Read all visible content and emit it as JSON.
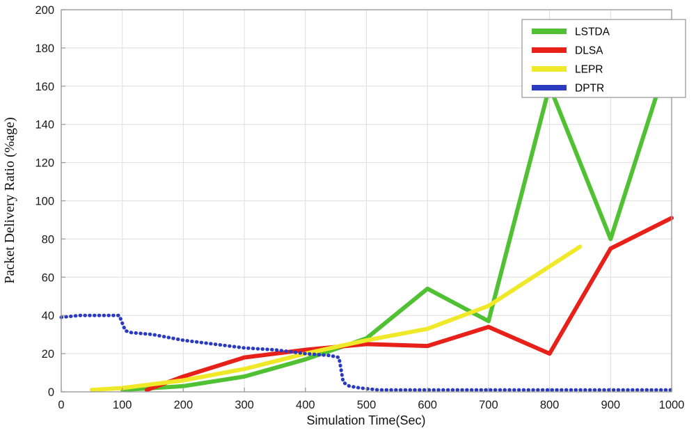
{
  "chart_data": {
    "type": "line",
    "title": "",
    "xlabel": "Simulation Time(Sec)",
    "ylabel": "Packet Delivery Ratio (%age)",
    "xlim": [
      0,
      1000
    ],
    "ylim": [
      0,
      200
    ],
    "xticks": [
      0,
      100,
      200,
      300,
      400,
      500,
      600,
      700,
      800,
      900,
      1000
    ],
    "yticks": [
      0,
      20,
      40,
      60,
      80,
      100,
      120,
      140,
      160,
      180,
      200
    ],
    "grid": true,
    "legend_position": "top-right",
    "colors": {
      "background": "#ffffff",
      "grid": "#dedede",
      "box": "#9b9b9b",
      "tick_text": "#1a1a1a"
    },
    "series": [
      {
        "name": "LSTDA",
        "color": "#4fc132",
        "style": "solid",
        "width": 6,
        "points": [
          [
            100,
            1
          ],
          [
            200,
            3
          ],
          [
            300,
            8
          ],
          [
            400,
            17
          ],
          [
            500,
            28
          ],
          [
            600,
            54
          ],
          [
            700,
            37
          ],
          [
            800,
            160
          ],
          [
            900,
            80
          ],
          [
            1000,
            180
          ]
        ]
      },
      {
        "name": "DLSA",
        "color": "#e7211a",
        "style": "solid",
        "width": 6,
        "points": [
          [
            140,
            1
          ],
          [
            200,
            8
          ],
          [
            300,
            18
          ],
          [
            400,
            22
          ],
          [
            500,
            25
          ],
          [
            600,
            24
          ],
          [
            700,
            34
          ],
          [
            800,
            20
          ],
          [
            900,
            75
          ],
          [
            1000,
            91
          ]
        ]
      },
      {
        "name": "LEPR",
        "color": "#f0e92a",
        "style": "solid",
        "width": 6,
        "points": [
          [
            50,
            1
          ],
          [
            100,
            2
          ],
          [
            200,
            6
          ],
          [
            300,
            12
          ],
          [
            400,
            20
          ],
          [
            500,
            27
          ],
          [
            600,
            33
          ],
          [
            700,
            45
          ],
          [
            850,
            76
          ]
        ]
      },
      {
        "name": "DPTR",
        "color": "#2b3bc0",
        "style": "dotted",
        "width": 5,
        "points": [
          [
            0,
            39
          ],
          [
            30,
            40
          ],
          [
            95,
            40
          ],
          [
            105,
            32
          ],
          [
            115,
            31
          ],
          [
            150,
            30
          ],
          [
            200,
            27
          ],
          [
            250,
            25
          ],
          [
            300,
            23
          ],
          [
            350,
            22
          ],
          [
            400,
            20
          ],
          [
            440,
            19
          ],
          [
            455,
            18
          ],
          [
            462,
            5
          ],
          [
            472,
            3
          ],
          [
            490,
            2
          ],
          [
            520,
            1
          ],
          [
            600,
            1
          ],
          [
            700,
            1
          ],
          [
            800,
            1
          ],
          [
            900,
            1
          ],
          [
            1000,
            1
          ]
        ]
      }
    ]
  }
}
